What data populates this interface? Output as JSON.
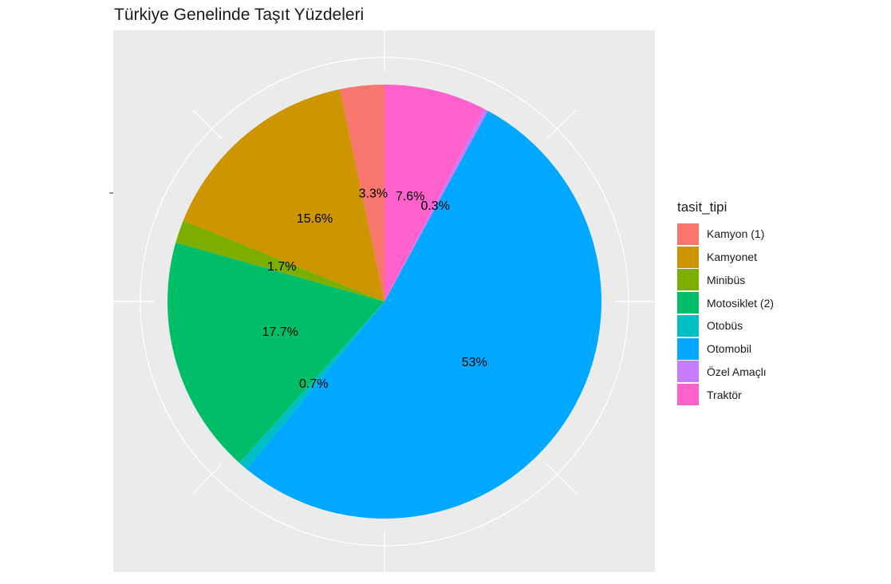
{
  "chart_data": {
    "type": "pie",
    "title": "Türkiye Genelinde Taşıt Yüzdeleri",
    "legend_title": "tasit_tipi",
    "legend_position": "right",
    "grid": true,
    "categories": [
      "Kamyon (1)",
      "Kamyonet",
      "Minibüs",
      "Motosiklet (2)",
      "Otobüs",
      "Otomobil",
      "Özel Amaçlı",
      "Traktör"
    ],
    "values": [
      3.3,
      15.6,
      1.7,
      17.7,
      0.7,
      53,
      0.3,
      7.6
    ],
    "data_labels": [
      "3.3%",
      "15.6%",
      "1.7%",
      "17.7%",
      "0.7%",
      "53%",
      "0.3%",
      "7.6%"
    ],
    "colors": [
      "#F8766D",
      "#CD9600",
      "#7CAE00",
      "#00BE67",
      "#00BFC4",
      "#00A9FF",
      "#C77CFF",
      "#FF61CC"
    ],
    "panel_background": "#EBEBEB",
    "grid_color": "#FFFFFF"
  }
}
